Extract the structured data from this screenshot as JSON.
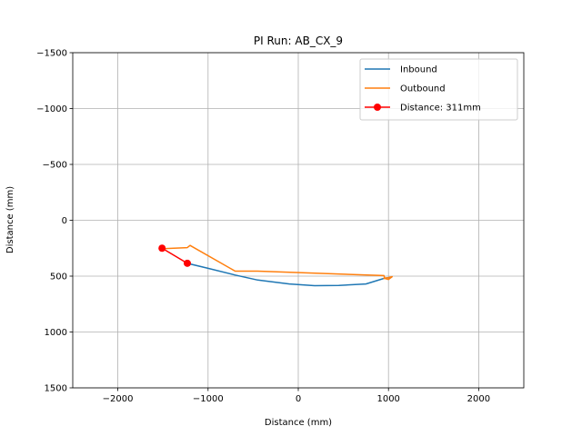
{
  "chart_data": {
    "type": "line",
    "title": "PI Run: AB_CX_9",
    "xlabel": "Distance (mm)",
    "ylabel": "Distance (mm)",
    "xlim": [
      -2500,
      2500
    ],
    "ylim": [
      -1500,
      1500
    ],
    "y_inverted": true,
    "grid": true,
    "legend_position": "top-right",
    "x_ticks": [
      -2000,
      -1000,
      0,
      1000,
      2000
    ],
    "x_tick_labels": [
      "−2000",
      "−1000",
      "0",
      "1000",
      "2000"
    ],
    "y_ticks": [
      -1500,
      -1000,
      -500,
      0,
      500,
      1000,
      1500
    ],
    "y_tick_labels": [
      "−1500",
      "−1000",
      "−500",
      "0",
      "500",
      "1000",
      "1500"
    ],
    "series": [
      {
        "name": "Inbound",
        "color": "#1f77b4",
        "x": [
          -1230,
          -1000,
          -700,
          -450,
          -300,
          -100,
          180,
          450,
          750,
          950,
          1030
        ],
        "y": [
          385,
          430,
          490,
          535,
          550,
          570,
          585,
          583,
          570,
          520,
          510
        ],
        "marker": "none"
      },
      {
        "name": "Outbound",
        "color": "#ff7f0e",
        "x": [
          -1520,
          -1230,
          -1200,
          -700,
          -450,
          950,
          960,
          1000,
          1040,
          990,
          950
        ],
        "y": [
          255,
          245,
          225,
          455,
          455,
          495,
          520,
          530,
          505,
          515,
          520
        ],
        "marker": "none"
      },
      {
        "name": "Distance: 311mm",
        "color": "#ff0000",
        "x": [
          -1510,
          -1230
        ],
        "y": [
          250,
          385
        ],
        "marker": "circle"
      }
    ]
  }
}
